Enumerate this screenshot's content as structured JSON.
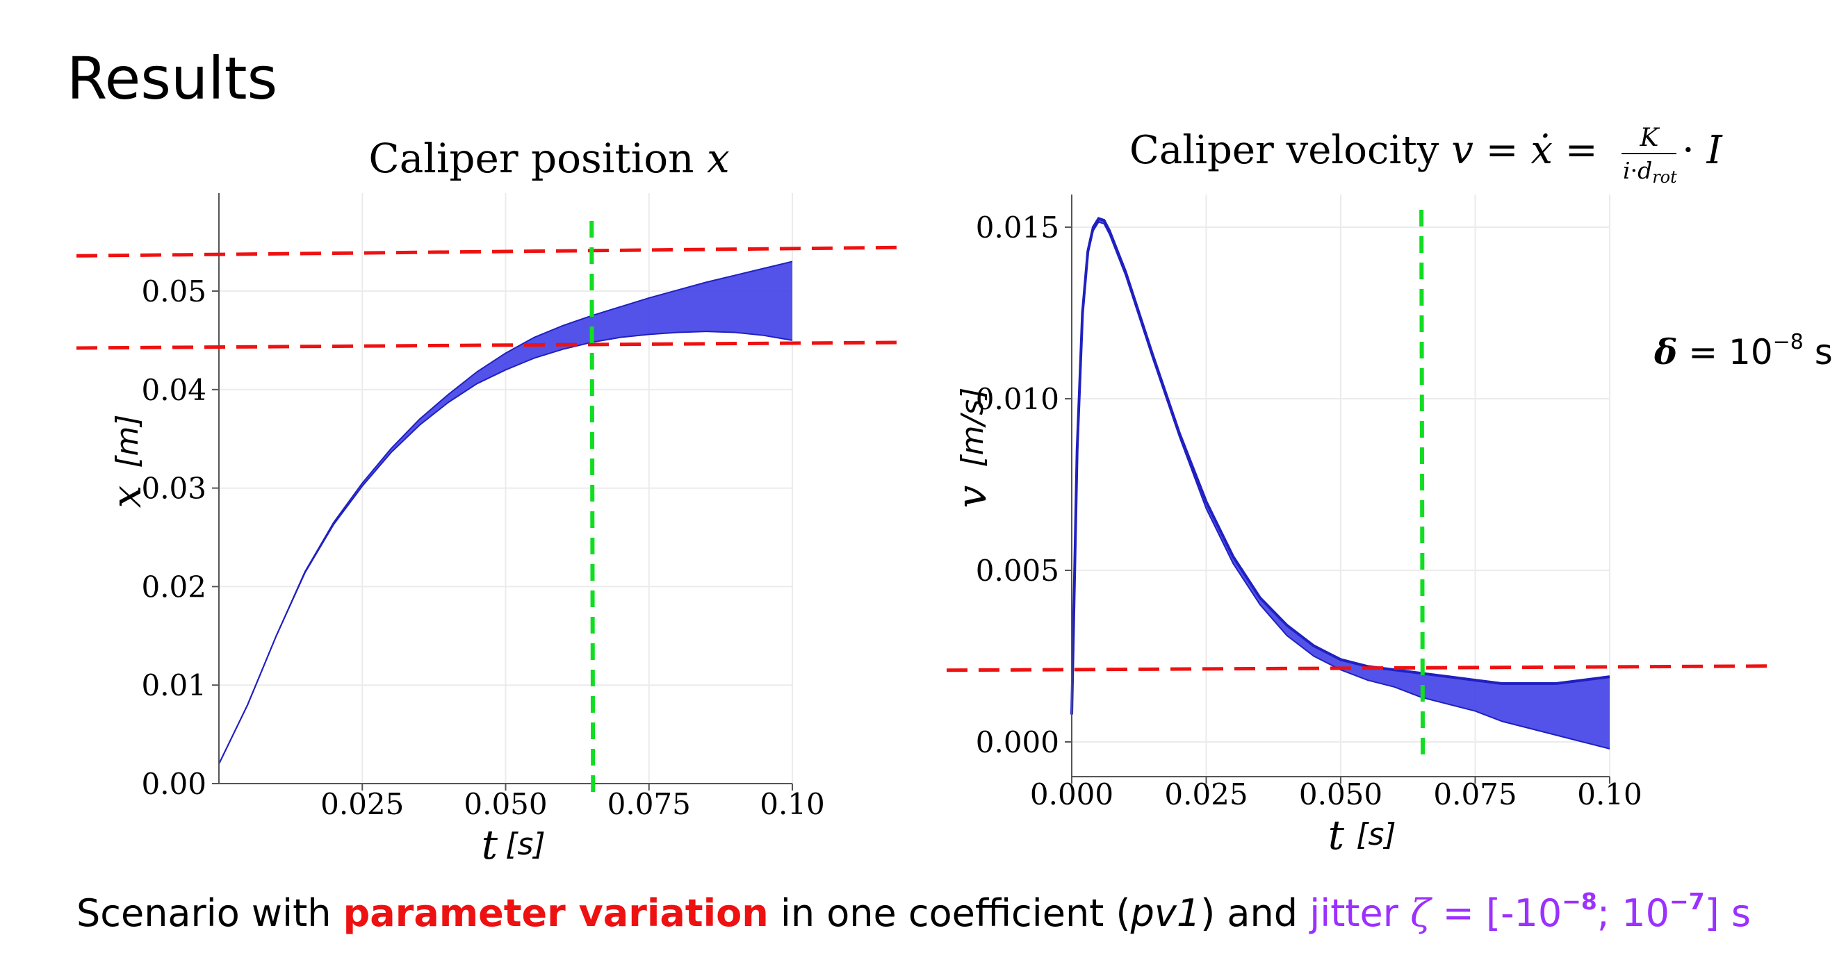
{
  "slide": {
    "title": "Results",
    "delta_note": {
      "symbol": "δ",
      "eq": " = 10",
      "exp": "−8",
      "unit": " s"
    },
    "caption": {
      "part1": "Scenario with ",
      "highlight": "parameter variation",
      "part2": " in one coefficient (",
      "italic": "pv1",
      "part3": ") and ",
      "jitter_word": "jitter ",
      "jitter_symbol": "ζ",
      "jitter_eq": " = [-10",
      "jitter_exp1": "−8",
      "jitter_mid": "; 10",
      "jitter_exp2": "−7",
      "jitter_end": "] s"
    },
    "colors": {
      "band": "#4040e8",
      "band_edge": "#2020c0",
      "threshold_red": "#ee1111",
      "time_green": "#11dd22",
      "highlight_red": "#ee1111",
      "jitter_purple": "#9b30ff",
      "grid": "#ebebeb",
      "axis": "#555555"
    }
  },
  "chart_data": [
    {
      "type": "area",
      "title": "Caliper position x",
      "title_text": "Caliper position ",
      "title_var": "x",
      "xlabel_var": "t",
      "xlabel_unit": "[s]",
      "ylabel_var": "x",
      "ylabel_unit": "[m]",
      "xlim": [
        0.0,
        0.1
      ],
      "ylim": [
        0.0,
        0.05
      ],
      "xticks": [
        0.025,
        0.05,
        0.075,
        0.1
      ],
      "xtick_labels": [
        "0.025",
        "0.050",
        "0.075",
        "0.10"
      ],
      "yticks": [
        0.0,
        0.01,
        0.02,
        0.03,
        0.04,
        0.05
      ],
      "ytick_labels": [
        "0.00",
        "0.01",
        "0.02",
        "0.03",
        "0.04",
        "0.05"
      ],
      "grid": true,
      "band": {
        "x": [
          0.0,
          0.005,
          0.01,
          0.015,
          0.02,
          0.025,
          0.03,
          0.035,
          0.04,
          0.045,
          0.05,
          0.055,
          0.06,
          0.065,
          0.07,
          0.075,
          0.08,
          0.085,
          0.09,
          0.095,
          0.1
        ],
        "upper": [
          0.002,
          0.008,
          0.015,
          0.0215,
          0.0265,
          0.0305,
          0.034,
          0.037,
          0.0395,
          0.0418,
          0.0437,
          0.0453,
          0.0465,
          0.0475,
          0.0484,
          0.0493,
          0.0501,
          0.0509,
          0.0516,
          0.0523,
          0.053
        ],
        "lower": [
          0.002,
          0.008,
          0.015,
          0.0214,
          0.0263,
          0.0302,
          0.0336,
          0.0364,
          0.0387,
          0.0406,
          0.042,
          0.0432,
          0.0441,
          0.0448,
          0.0453,
          0.0456,
          0.0458,
          0.0459,
          0.0458,
          0.0455,
          0.045
        ]
      },
      "hlines": [
        0.054,
        0.0445
      ],
      "vline": 0.065
    },
    {
      "type": "area",
      "title": "Caliper velocity v = ẋ = K / (i·d_rot) · I",
      "title_text": "Caliper velocity ",
      "title_var": "v",
      "title_eq1": " = ",
      "title_xdot": "ẋ",
      "title_eq2": " = ",
      "frac_num": "K",
      "frac_den_i": "i",
      "frac_den_dot": "·",
      "frac_den_d": "d",
      "frac_den_sub": "rot",
      "title_tail_dot": " · ",
      "title_tail_I": "I",
      "xlabel_var": "t",
      "xlabel_unit": "[s]",
      "ylabel_var": "v",
      "ylabel_unit": "[m/s]",
      "xlim": [
        0.0,
        0.1
      ],
      "ylim": [
        0.0,
        0.015
      ],
      "xticks": [
        0.0,
        0.025,
        0.05,
        0.075,
        0.1
      ],
      "xtick_labels": [
        "0.000",
        "0.025",
        "0.050",
        "0.075",
        "0.10"
      ],
      "yticks": [
        0.0,
        0.005,
        0.01,
        0.015
      ],
      "ytick_labels": [
        "0.000",
        "0.005",
        "0.010",
        "0.015"
      ],
      "grid": true,
      "band": {
        "x": [
          0.0,
          0.001,
          0.002,
          0.003,
          0.004,
          0.005,
          0.006,
          0.007,
          0.008,
          0.01,
          0.015,
          0.02,
          0.025,
          0.03,
          0.035,
          0.04,
          0.045,
          0.05,
          0.055,
          0.06,
          0.065,
          0.07,
          0.075,
          0.08,
          0.085,
          0.09,
          0.095,
          0.1
        ],
        "upper": [
          0.0008,
          0.0085,
          0.0125,
          0.0143,
          0.015,
          0.01525,
          0.0152,
          0.0149,
          0.0145,
          0.0137,
          0.0113,
          0.009,
          0.007,
          0.0054,
          0.0042,
          0.0034,
          0.0028,
          0.0024,
          0.0022,
          0.0021,
          0.002,
          0.0019,
          0.0018,
          0.0017,
          0.0017,
          0.0017,
          0.0018,
          0.0019
        ],
        "lower": [
          0.0008,
          0.0084,
          0.0124,
          0.0142,
          0.0149,
          0.01515,
          0.0151,
          0.0148,
          0.0144,
          0.0136,
          0.0112,
          0.0089,
          0.0068,
          0.0052,
          0.004,
          0.0031,
          0.0025,
          0.0021,
          0.0018,
          0.0016,
          0.0013,
          0.0011,
          0.0009,
          0.0006,
          0.0004,
          0.0002,
          0.0,
          -0.0002
        ]
      },
      "hlines": [
        0.00215
      ],
      "vline": 0.065
    }
  ]
}
